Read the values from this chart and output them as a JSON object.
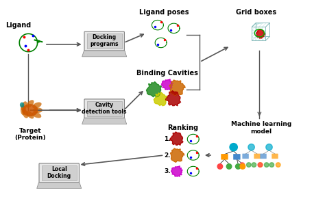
{
  "background_color": "#ffffff",
  "labels": {
    "ligand": "Ligand",
    "target": "Target\n(Protein)",
    "docking_programs": "Docking\nprograms",
    "cavity_detection": "Cavity\ndetection tools",
    "local_docking": "Local\nDocking",
    "ligand_poses": "Ligand poses",
    "binding_cavities": "Binding Cavities",
    "grid_boxes": "Grid boxes",
    "ranking": "Ranking",
    "ml_model": "Machine learning\nmodel"
  },
  "box_facecolor": "#d9d9d9",
  "box_edgecolor": "#808080",
  "arrow_color": "#555555",
  "text_color": "#000000",
  "laptop_color": "#c0c0c0",
  "laptop_screen_color": "#e8e8e8"
}
